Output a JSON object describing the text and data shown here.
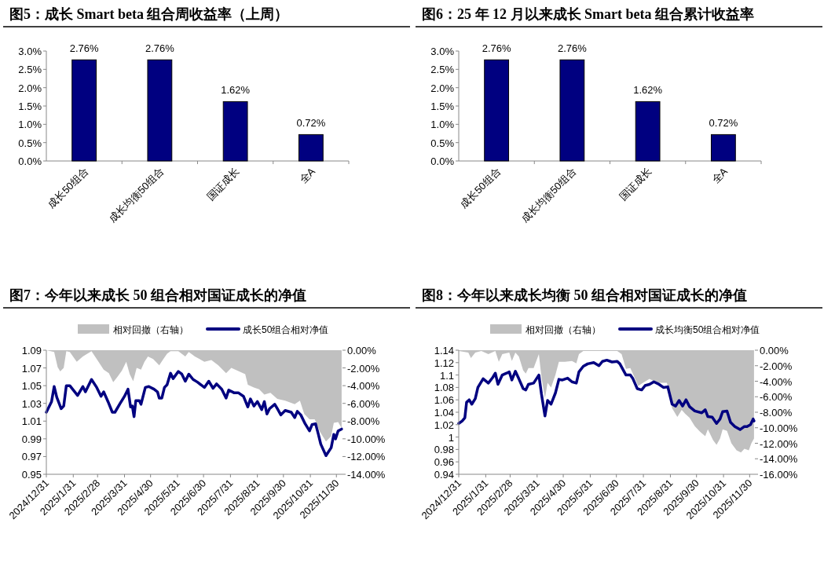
{
  "chart_data": [
    {
      "type": "bar",
      "title": "图5：成长 Smart beta 组合周收益率（上周）",
      "categories": [
        "成长50组合",
        "成长均衡50组合",
        "国证成长",
        "全A"
      ],
      "values": [
        2.76,
        2.76,
        1.62,
        0.72
      ],
      "value_labels": [
        "2.76%",
        "2.76%",
        "1.62%",
        "0.72%"
      ],
      "color": "#000080",
      "ylim": [
        0,
        3
      ],
      "yticks": [
        {
          "value": 0,
          "label": "0.0%"
        },
        {
          "value": 0.5,
          "label": "0.5%"
        },
        {
          "value": 1,
          "label": "1.0%"
        },
        {
          "value": 1.5,
          "label": "1.5%"
        },
        {
          "value": 2,
          "label": "2.0%"
        },
        {
          "value": 2.5,
          "label": "2.5%"
        },
        {
          "value": 3,
          "label": "3.0%"
        }
      ]
    },
    {
      "type": "bar",
      "title": "图6：25 年 12 月以来成长 Smart beta 组合累计收益率",
      "categories": [
        "成长50组合",
        "成长均衡50组合",
        "国证成长",
        "全A"
      ],
      "values": [
        2.76,
        2.76,
        1.62,
        0.72
      ],
      "value_labels": [
        "2.76%",
        "2.76%",
        "1.62%",
        "0.72%"
      ],
      "color": "#000080",
      "ylim": [
        0,
        3
      ],
      "yticks": [
        {
          "value": 0,
          "label": "0.0%"
        },
        {
          "value": 0.5,
          "label": "0.5%"
        },
        {
          "value": 1,
          "label": "1.0%"
        },
        {
          "value": 1.5,
          "label": "1.5%"
        },
        {
          "value": 2,
          "label": "2.0%"
        },
        {
          "value": 2.5,
          "label": "2.5%"
        },
        {
          "value": 3,
          "label": "3.0%"
        }
      ]
    },
    {
      "type": "line",
      "title": "图7：今年以来成长 50 组合相对国证成长的净值",
      "legend": "top",
      "xlim": [
        "2024-12-31",
        "2025-12-07"
      ],
      "xticks": [
        {
          "value": "2024-12-31",
          "label": "2024/12/31"
        },
        {
          "value": "2025-01-31",
          "label": "2025/1/31"
        },
        {
          "value": "2025-02-28",
          "label": "2025/2/28"
        },
        {
          "value": "2025-03-31",
          "label": "2025/3/31"
        },
        {
          "value": "2025-04-30",
          "label": "2025/4/30"
        },
        {
          "value": "2025-05-31",
          "label": "2025/5/31"
        },
        {
          "value": "2025-06-30",
          "label": "2025/6/30"
        },
        {
          "value": "2025-07-31",
          "label": "2025/7/31"
        },
        {
          "value": "2025-08-31",
          "label": "2025/8/31"
        },
        {
          "value": "2025-09-30",
          "label": "2025/9/30"
        },
        {
          "value": "2025-10-31",
          "label": "2025/10/31"
        },
        {
          "value": "2025-11-30",
          "label": "2025/11/30"
        }
      ],
      "ylim": [
        0.95,
        1.09
      ],
      "yticks": [
        0.95,
        0.97,
        0.99,
        1.01,
        1.03,
        1.05,
        1.07,
        1.09
      ],
      "y2lim": [
        -14,
        0
      ],
      "y2ticks": [
        {
          "value": 0,
          "label": "0.00%"
        },
        {
          "value": -2,
          "label": "-2.00%"
        },
        {
          "value": -4,
          "label": "-4.00%"
        },
        {
          "value": -6,
          "label": "-6.00%"
        },
        {
          "value": -8,
          "label": "-8.00%"
        },
        {
          "value": -10,
          "label": "-10.00%"
        },
        {
          "value": -12,
          "label": "-12.00%"
        },
        {
          "value": -14,
          "label": "-14.00%"
        }
      ],
      "series": [
        {
          "name": "相对回撤（右轴）",
          "type": "area",
          "axis": "y2",
          "color": "#c0c0c0",
          "x": [
            "2024-12-31",
            "2025-01-09",
            "2025-01-13",
            "2025-01-16",
            "2025-01-20",
            "2025-01-23",
            "2025-01-27",
            "2025-02-04",
            "2025-02-11",
            "2025-02-21",
            "2025-02-27",
            "2025-03-07",
            "2025-03-13",
            "2025-03-18",
            "2025-03-23",
            "2025-03-28",
            "2025-04-02",
            "2025-04-06",
            "2025-04-10",
            "2025-04-14",
            "2025-04-19",
            "2025-04-23",
            "2025-04-27",
            "2025-05-03",
            "2025-05-10",
            "2025-05-14",
            "2025-05-19",
            "2025-05-23",
            "2025-06-01",
            "2025-06-09",
            "2025-06-13",
            "2025-06-20",
            "2025-07-01",
            "2025-07-09",
            "2025-07-17",
            "2025-07-26",
            "2025-08-01",
            "2025-08-10",
            "2025-08-17",
            "2025-08-20",
            "2025-08-27",
            "2025-09-02",
            "2025-09-08",
            "2025-09-15",
            "2025-09-23",
            "2025-10-02",
            "2025-10-13",
            "2025-10-19",
            "2025-10-24",
            "2025-10-30",
            "2025-11-05",
            "2025-11-11",
            "2025-11-18",
            "2025-11-24",
            "2025-11-27",
            "2025-12-02",
            "2025-12-06"
          ],
          "values": [
            0,
            -0.2,
            -1.9,
            -2.4,
            -2.0,
            -0.1,
            -0.2,
            -1.3,
            -0.7,
            -0.1,
            -1.0,
            -2.2,
            -2.6,
            -3.6,
            -3.0,
            -2.3,
            -1.3,
            -2.7,
            -3.5,
            -2.0,
            -2.2,
            -1.3,
            -0.7,
            -1.0,
            -1.7,
            -1.1,
            -0.4,
            -0.1,
            -0.1,
            -0.7,
            -0.2,
            -0.7,
            -1.3,
            -1.1,
            -1.7,
            -2.6,
            -2.0,
            -2.4,
            -2.7,
            -3.9,
            -4.2,
            -4.4,
            -5.0,
            -4.8,
            -5.5,
            -5.7,
            -6.1,
            -5.7,
            -7.2,
            -7.8,
            -7.8,
            -9.2,
            -10.3,
            -9.7,
            -8.2,
            -8.1,
            -8.8
          ]
        },
        {
          "name": "成长50组合相对净值",
          "type": "line",
          "color": "#000080",
          "x": [
            "2024-12-31",
            "2025-01-06",
            "2025-01-09",
            "2025-01-12",
            "2025-01-17",
            "2025-01-20",
            "2025-01-23",
            "2025-01-27",
            "2025-02-05",
            "2025-02-11",
            "2025-02-14",
            "2025-02-21",
            "2025-02-27",
            "2025-03-04",
            "2025-03-07",
            "2025-03-12",
            "2025-03-17",
            "2025-03-20",
            "2025-03-26",
            "2025-03-31",
            "2025-04-04",
            "2025-04-07",
            "2025-04-09",
            "2025-04-11",
            "2025-04-13",
            "2025-04-17",
            "2025-04-19",
            "2025-04-24",
            "2025-04-28",
            "2025-05-04",
            "2025-05-08",
            "2025-05-10",
            "2025-05-13",
            "2025-05-16",
            "2025-05-19",
            "2025-05-23",
            "2025-05-26",
            "2025-06-01",
            "2025-06-05",
            "2025-06-09",
            "2025-06-13",
            "2025-06-18",
            "2025-06-23",
            "2025-07-01",
            "2025-07-06",
            "2025-07-11",
            "2025-07-15",
            "2025-07-21",
            "2025-07-26",
            "2025-07-29",
            "2025-08-04",
            "2025-08-09",
            "2025-08-15",
            "2025-08-20",
            "2025-08-23",
            "2025-08-27",
            "2025-08-31",
            "2025-09-05",
            "2025-09-08",
            "2025-09-11",
            "2025-09-14",
            "2025-09-20",
            "2025-09-23",
            "2025-09-27",
            "2025-10-02",
            "2025-10-09",
            "2025-10-13",
            "2025-10-16",
            "2025-10-20",
            "2025-10-25",
            "2025-10-30",
            "2025-11-02",
            "2025-11-06",
            "2025-11-09",
            "2025-11-12",
            "2025-11-18",
            "2025-11-24",
            "2025-11-27",
            "2025-11-29",
            "2025-12-02",
            "2025-12-06"
          ],
          "values": [
            1.02,
            1.032,
            1.049,
            1.037,
            1.024,
            1.027,
            1.05,
            1.05,
            1.039,
            1.049,
            1.043,
            1.057,
            1.048,
            1.038,
            1.043,
            1.032,
            1.02,
            1.02,
            1.03,
            1.038,
            1.046,
            1.026,
            1.027,
            1.015,
            1.033,
            1.033,
            1.029,
            1.048,
            1.049,
            1.046,
            1.043,
            1.036,
            1.036,
            1.048,
            1.051,
            1.064,
            1.058,
            1.066,
            1.063,
            1.055,
            1.063,
            1.057,
            1.054,
            1.048,
            1.055,
            1.047,
            1.052,
            1.046,
            1.036,
            1.045,
            1.042,
            1.042,
            1.038,
            1.026,
            1.035,
            1.027,
            1.032,
            1.023,
            1.032,
            1.018,
            1.024,
            1.029,
            1.024,
            1.017,
            1.022,
            1.02,
            1.014,
            1.021,
            1.017,
            1.007,
            0.999,
            1.006,
            1.007,
            0.996,
            0.984,
            0.971,
            0.98,
            0.995,
            0.99,
            0.999,
            1.001
          ]
        }
      ]
    },
    {
      "type": "line",
      "title": "图8：今年以来成长均衡 50 组合相对国证成长的净值",
      "legend": "top",
      "xlim": [
        "2024-12-31",
        "2025-12-06"
      ],
      "xticks": [
        {
          "value": "2024-12-31",
          "label": "2024/12/31"
        },
        {
          "value": "2025-01-31",
          "label": "2025/1/31"
        },
        {
          "value": "2025-02-28",
          "label": "2025/2/28"
        },
        {
          "value": "2025-03-31",
          "label": "2025/3/31"
        },
        {
          "value": "2025-04-30",
          "label": "2025/4/30"
        },
        {
          "value": "2025-05-31",
          "label": "2025/5/31"
        },
        {
          "value": "2025-06-30",
          "label": "2025/6/30"
        },
        {
          "value": "2025-07-31",
          "label": "2025/7/31"
        },
        {
          "value": "2025-08-31",
          "label": "2025/8/31"
        },
        {
          "value": "2025-09-30",
          "label": "2025/9/30"
        },
        {
          "value": "2025-10-31",
          "label": "2025/10/31"
        },
        {
          "value": "2025-11-30",
          "label": "2025/11/30"
        }
      ],
      "ylim": [
        0.94,
        1.14
      ],
      "yticks": [
        0.94,
        0.96,
        0.98,
        1,
        1.02,
        1.04,
        1.06,
        1.08,
        1.1,
        1.12,
        1.14
      ],
      "y2lim": [
        -16,
        0
      ],
      "y2ticks": [
        {
          "value": 0,
          "label": "0.00%"
        },
        {
          "value": -2,
          "label": "-2.00%"
        },
        {
          "value": -4,
          "label": "-4.00%"
        },
        {
          "value": -6,
          "label": "-6.00%"
        },
        {
          "value": -8,
          "label": "-8.00%"
        },
        {
          "value": -10,
          "label": "-10.00%"
        },
        {
          "value": -12,
          "label": "-12.00%"
        },
        {
          "value": -14,
          "label": "-14.00%"
        },
        {
          "value": -16,
          "label": "-16.00%"
        }
      ],
      "series": [
        {
          "name": "相对回撤（右轴）",
          "type": "area",
          "axis": "y2",
          "color": "#c0c0c0",
          "x": [
            "2024-12-31",
            "2025-01-11",
            "2025-01-14",
            "2025-01-19",
            "2025-01-26",
            "2025-02-03",
            "2025-02-11",
            "2025-02-15",
            "2025-02-19",
            "2025-02-27",
            "2025-03-02",
            "2025-03-06",
            "2025-03-10",
            "2025-03-15",
            "2025-03-18",
            "2025-03-21",
            "2025-03-27",
            "2025-04-02",
            "2025-04-05",
            "2025-04-09",
            "2025-04-12",
            "2025-04-16",
            "2025-04-21",
            "2025-04-25",
            "2025-05-02",
            "2025-05-10",
            "2025-05-15",
            "2025-05-18",
            "2025-05-23",
            "2025-06-17",
            "2025-07-01",
            "2025-07-06",
            "2025-07-11",
            "2025-07-16",
            "2025-07-20",
            "2025-07-25",
            "2025-08-01",
            "2025-08-07",
            "2025-08-14",
            "2025-08-20",
            "2025-08-27",
            "2025-09-02",
            "2025-09-08",
            "2025-09-13",
            "2025-09-17",
            "2025-09-22",
            "2025-09-28",
            "2025-10-04",
            "2025-10-10",
            "2025-10-13",
            "2025-10-19",
            "2025-10-23",
            "2025-10-27",
            "2025-10-30",
            "2025-11-04",
            "2025-11-09",
            "2025-11-15",
            "2025-11-20",
            "2025-11-24",
            "2025-11-29",
            "2025-12-02",
            "2025-12-05"
          ],
          "values": [
            -0.1,
            -0.3,
            -1.0,
            -0.3,
            -0.1,
            -0.5,
            -0.1,
            -1.5,
            -0.5,
            -0.3,
            -1.4,
            -0.3,
            -0.8,
            -2.6,
            -3.0,
            -2.3,
            -2.3,
            -0.5,
            -3.5,
            -6.2,
            -4.2,
            -4.8,
            -3.2,
            -1.5,
            -1.5,
            -1.4,
            -1.7,
            -0.5,
            -0.1,
            -0.1,
            -0.1,
            -0.5,
            -2.4,
            -2.3,
            -3.3,
            -4.6,
            -4.1,
            -3.7,
            -4.1,
            -4.2,
            -4.2,
            -7.5,
            -8.6,
            -7.7,
            -8.2,
            -8.7,
            -9.8,
            -10.5,
            -11.1,
            -10.2,
            -11.6,
            -12.2,
            -11.4,
            -10.2,
            -10.4,
            -12.0,
            -12.9,
            -13.2,
            -12.7,
            -12.9,
            -12.0,
            -11.4
          ]
        },
        {
          "name": "成长均衡50组合相对净值",
          "type": "line",
          "color": "#000080",
          "x": [
            "2024-12-31",
            "2025-01-04",
            "2025-01-07",
            "2025-01-09",
            "2025-01-12",
            "2025-01-15",
            "2025-01-19",
            "2025-01-22",
            "2025-01-28",
            "2025-02-03",
            "2025-02-08",
            "2025-02-11",
            "2025-02-14",
            "2025-02-19",
            "2025-02-24",
            "2025-02-27",
            "2025-03-02",
            "2025-03-06",
            "2025-03-10",
            "2025-03-15",
            "2025-03-18",
            "2025-03-21",
            "2025-03-27",
            "2025-04-02",
            "2025-04-05",
            "2025-04-09",
            "2025-04-12",
            "2025-04-16",
            "2025-04-21",
            "2025-04-25",
            "2025-04-29",
            "2025-05-05",
            "2025-05-10",
            "2025-05-15",
            "2025-05-18",
            "2025-05-23",
            "2025-05-28",
            "2025-06-04",
            "2025-06-10",
            "2025-06-14",
            "2025-06-19",
            "2025-06-25",
            "2025-07-01",
            "2025-07-04",
            "2025-07-11",
            "2025-07-16",
            "2025-07-19",
            "2025-07-24",
            "2025-07-29",
            "2025-08-02",
            "2025-08-07",
            "2025-08-12",
            "2025-08-18",
            "2025-08-23",
            "2025-08-28",
            "2025-09-02",
            "2025-09-06",
            "2025-09-10",
            "2025-09-14",
            "2025-09-18",
            "2025-09-22",
            "2025-09-28",
            "2025-10-06",
            "2025-10-10",
            "2025-10-13",
            "2025-10-18",
            "2025-10-23",
            "2025-10-27",
            "2025-10-30",
            "2025-11-04",
            "2025-11-08",
            "2025-11-13",
            "2025-11-19",
            "2025-11-24",
            "2025-11-27",
            "2025-12-01",
            "2025-12-04",
            "2025-12-05"
          ],
          "values": [
            1.022,
            1.026,
            1.031,
            1.056,
            1.06,
            1.053,
            1.062,
            1.08,
            1.094,
            1.087,
            1.096,
            1.103,
            1.085,
            1.1,
            1.103,
            1.105,
            1.092,
            1.106,
            1.094,
            1.078,
            1.076,
            1.085,
            1.087,
            1.1,
            1.069,
            1.034,
            1.059,
            1.053,
            1.071,
            1.093,
            1.092,
            1.095,
            1.089,
            1.087,
            1.105,
            1.114,
            1.118,
            1.12,
            1.115,
            1.122,
            1.124,
            1.121,
            1.122,
            1.118,
            1.1,
            1.1,
            1.094,
            1.078,
            1.076,
            1.083,
            1.085,
            1.089,
            1.085,
            1.08,
            1.081,
            1.053,
            1.05,
            1.059,
            1.05,
            1.06,
            1.049,
            1.042,
            1.039,
            1.044,
            1.033,
            1.032,
            1.022,
            1.029,
            1.041,
            1.042,
            1.024,
            1.017,
            1.012,
            1.017,
            1.017,
            1.02,
            1.029,
            1.026
          ]
        }
      ]
    }
  ]
}
